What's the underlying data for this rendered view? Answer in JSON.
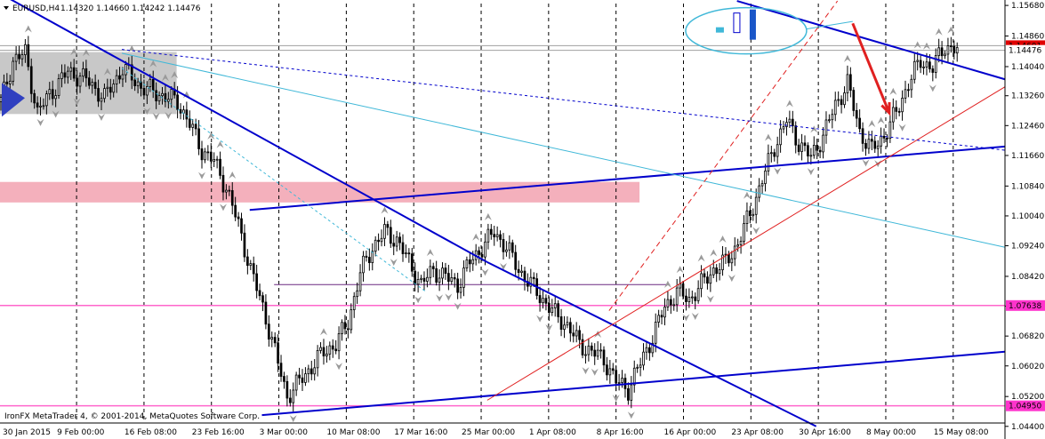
{
  "header": {
    "symbol": "EURUSD,H4",
    "ohlc": "1.14320 1.14660 1.14242 1.14476"
  },
  "copyright": "IronFX MetaTrader 4, © 2001-2014, MetaQuotes Software Corp.",
  "colors": {
    "candle": "#000000",
    "price_line": "#a0a0a0",
    "blue_line": "#0000cc",
    "cyan_line": "#40b8d8",
    "red_line": "#e02020",
    "magenta_line": "#ff66cc",
    "magenta_label": "#ff33cc",
    "gray_zone": "#c8c8c8",
    "pink_zone": "#f4b0bc",
    "current_label": "#e00000"
  },
  "chart_data": {
    "type": "candlestick",
    "symbol": "EURUSD",
    "timeframe": "H4",
    "ylim": [
      1.0449,
      1.1573
    ],
    "y_ticks": [
      "1.15680",
      "1.14860",
      "1.14040",
      "1.13260",
      "1.12460",
      "1.11660",
      "1.10840",
      "1.10040",
      "1.09240",
      "1.08420",
      "1.07620",
      "1.06820",
      "1.06020",
      "1.05200",
      "1.04400"
    ],
    "x_ticks": [
      "30 Jan 2015",
      "9 Feb 00:00",
      "16 Feb 08:00",
      "23 Feb 16:00",
      "3 Mar 00:00",
      "10 Mar 08:00",
      "17 Mar 16:00",
      "25 Mar 00:00",
      "1 Apr 08:00",
      "8 Apr 16:00",
      "16 Apr 00:00",
      "23 Apr 08:00",
      "30 Apr 16:00",
      "8 May 00:00",
      "15 May 08:00"
    ],
    "price_labels": [
      {
        "text": "1.14601",
        "value": 1.14601,
        "color": "red"
      },
      {
        "text": "1.14476",
        "value": 1.14476,
        "color": "plain"
      },
      {
        "text": "1.07638",
        "value": 1.07638,
        "color": "magenta"
      },
      {
        "text": "1.04950",
        "value": 1.0495,
        "color": "magenta"
      }
    ],
    "horizontal_levels": [
      1.14601,
      1.14476,
      1.07638,
      1.0495
    ],
    "zones": [
      {
        "name": "gray-supply-zone",
        "from_bar": 0,
        "to_bar": 58,
        "high": 1.1443,
        "low": 1.1277
      },
      {
        "name": "pink-resistance-zone",
        "from_bar": 0,
        "to_bar": 210,
        "high": 1.1095,
        "low": 1.104
      }
    ],
    "close_path": [
      [
        0,
        1.131
      ],
      [
        4,
        1.142
      ],
      [
        8,
        1.144
      ],
      [
        12,
        1.128
      ],
      [
        16,
        1.133
      ],
      [
        22,
        1.139
      ],
      [
        28,
        1.137
      ],
      [
        34,
        1.132
      ],
      [
        40,
        1.14
      ],
      [
        46,
        1.135
      ],
      [
        52,
        1.133
      ],
      [
        58,
        1.131
      ],
      [
        62,
        1.125
      ],
      [
        66,
        1.118
      ],
      [
        70,
        1.115
      ],
      [
        74,
        1.108
      ],
      [
        78,
        1.098
      ],
      [
        82,
        1.086
      ],
      [
        86,
        1.076
      ],
      [
        90,
        1.064
      ],
      [
        94,
        1.052
      ],
      [
        98,
        1.056
      ],
      [
        102,
        1.06
      ],
      [
        106,
        1.064
      ],
      [
        110,
        1.066
      ],
      [
        114,
        1.072
      ],
      [
        118,
        1.085
      ],
      [
        122,
        1.092
      ],
      [
        126,
        1.096
      ],
      [
        130,
        1.094
      ],
      [
        134,
        1.088
      ],
      [
        138,
        1.082
      ],
      [
        142,
        1.086
      ],
      [
        146,
        1.084
      ],
      [
        150,
        1.082
      ],
      [
        154,
        1.088
      ],
      [
        158,
        1.092
      ],
      [
        162,
        1.096
      ],
      [
        166,
        1.092
      ],
      [
        170,
        1.086
      ],
      [
        174,
        1.082
      ],
      [
        178,
        1.078
      ],
      [
        182,
        1.074
      ],
      [
        186,
        1.071
      ],
      [
        190,
        1.066
      ],
      [
        194,
        1.064
      ],
      [
        198,
        1.062
      ],
      [
        202,
        1.056
      ],
      [
        206,
        1.054
      ],
      [
        210,
        1.061
      ],
      [
        214,
        1.068
      ],
      [
        218,
        1.076
      ],
      [
        222,
        1.08
      ],
      [
        226,
        1.078
      ],
      [
        230,
        1.082
      ],
      [
        234,
        1.086
      ],
      [
        238,
        1.088
      ],
      [
        242,
        1.093
      ],
      [
        246,
        1.101
      ],
      [
        250,
        1.11
      ],
      [
        254,
        1.119
      ],
      [
        258,
        1.126
      ],
      [
        262,
        1.12
      ],
      [
        266,
        1.116
      ],
      [
        270,
        1.122
      ],
      [
        274,
        1.13
      ],
      [
        278,
        1.136
      ],
      [
        282,
        1.123
      ],
      [
        286,
        1.118
      ],
      [
        290,
        1.122
      ],
      [
        294,
        1.128
      ],
      [
        298,
        1.136
      ],
      [
        302,
        1.142
      ],
      [
        306,
        1.14
      ],
      [
        310,
        1.146
      ],
      [
        314,
        1.1448
      ]
    ],
    "lines": [
      {
        "name": "blue-downtrend-top",
        "color": "blue",
        "p1": [
          0,
          1.16
        ],
        "p2": [
          160,
          1.088
        ]
      },
      {
        "name": "blue-downtrend-mid",
        "color": "blue",
        "p1": [
          160,
          1.088
        ],
        "p2": [
          268,
          1.044
        ]
      },
      {
        "name": "blue-mid-trendline",
        "color": "blue",
        "p1": [
          82,
          1.102
        ],
        "p2": [
          330,
          1.119
        ]
      },
      {
        "name": "blue-lower-trendline",
        "color": "blue",
        "p1": [
          86,
          1.047
        ],
        "p2": [
          330,
          1.064
        ]
      },
      {
        "name": "blue-upper-channel",
        "color": "blue",
        "p1": [
          242,
          1.158
        ],
        "p2": [
          330,
          1.137
        ]
      },
      {
        "name": "cyan-trendline",
        "color": "cyan",
        "p1": [
          40,
          1.144
        ],
        "p2": [
          330,
          1.092
        ]
      },
      {
        "name": "red-solid-trendline",
        "color": "red",
        "p1": [
          160,
          1.051
        ],
        "p2": [
          330,
          1.135
        ]
      },
      {
        "name": "red-dashed-trendline",
        "color": "red",
        "p1": [
          200,
          1.075
        ],
        "p2": [
          275,
          1.158
        ]
      }
    ],
    "arrow": {
      "from": [
        280,
        1.152
      ],
      "to": [
        292,
        1.128
      ],
      "color": "red"
    }
  }
}
